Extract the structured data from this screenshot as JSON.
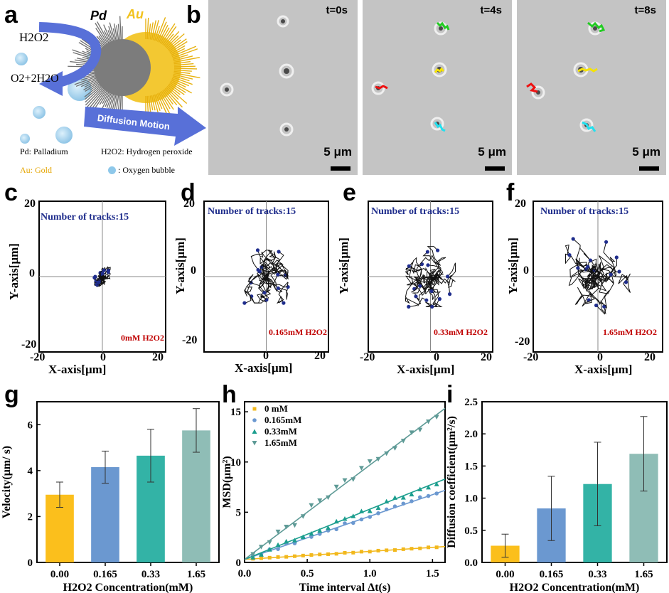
{
  "panel_labels": {
    "a": "a",
    "b": "b",
    "c": "c",
    "d": "d",
    "e": "e",
    "f": "f",
    "g": "g",
    "h": "h",
    "i": "i"
  },
  "schematic": {
    "pd": "Pd",
    "au": "Au",
    "h2o2_top": "H2O2",
    "products": "O2+2H2O",
    "diffusion": "Diffusion Motion",
    "legend_pd": "Pd: Palladium",
    "legend_h2o2": "H2O2: Hydrogen peroxide",
    "legend_au": "Au: Gold",
    "legend_bubble": ": Oxygen bubble",
    "colors": {
      "au": "#f2c21c",
      "arrow": "#5870d8",
      "bubble": "#8ec8ea"
    }
  },
  "micrographs": [
    {
      "time": "t=0s",
      "scale": "5 μm"
    },
    {
      "time": "t=4s",
      "scale": "5 μm"
    },
    {
      "time": "t=8s",
      "scale": "5 μm"
    }
  ],
  "tracks": {
    "number_label": "Number of tracks:15",
    "x_label": "X-axis[μm]",
    "y_label": "Y-axis[μm]",
    "ticks": {
      "neg": "-20",
      "zero": "0",
      "pos": "20"
    },
    "conditions": [
      {
        "name": "0mM H2O2",
        "spread": 2.5
      },
      {
        "name": "0.165mM H2O2",
        "spread": 7
      },
      {
        "name": "0.33mM H2O2",
        "spread": 8
      },
      {
        "name": "1.65mM H2O2",
        "spread": 10
      }
    ],
    "colors": {
      "number": "#1f2d8c",
      "condition": "#c00000"
    }
  },
  "chart_data": [
    {
      "type": "bar",
      "title": "",
      "xlabel": "H2O2 Concentration(mM)",
      "ylabel": "Velocity(μm/ s)",
      "categories": [
        "0.00",
        "0.165",
        "0.33",
        "1.65"
      ],
      "values": [
        2.95,
        4.15,
        4.65,
        5.75
      ],
      "errors": [
        0.55,
        0.7,
        1.15,
        0.95
      ],
      "colors": [
        "#fbbf1c",
        "#6b98d0",
        "#33b3a6",
        "#8fbdb6"
      ],
      "ylim": [
        0,
        7
      ],
      "yticks": [
        "0",
        "2",
        "4",
        "6"
      ]
    },
    {
      "type": "line",
      "title": "",
      "xlabel": "Time interval Δt(s)",
      "ylabel": "MSD(μm²)",
      "xlim": [
        0,
        1.6
      ],
      "ylim": [
        0,
        16
      ],
      "xticks": [
        "0.0",
        "0.5",
        "1.0",
        "1.5"
      ],
      "yticks": [
        "0",
        "5",
        "10",
        "15"
      ],
      "series": [
        {
          "name": "0 mM",
          "slope": 0.8,
          "color": "#f2b81c",
          "marker": "square"
        },
        {
          "name": "0.165mM",
          "slope": 4.3,
          "color": "#6b98d0",
          "marker": "circle"
        },
        {
          "name": "0.33mM",
          "slope": 5.0,
          "color": "#1c9e8e",
          "marker": "triangle"
        },
        {
          "name": "1.65mM",
          "slope": 9.4,
          "color": "#5e9a96",
          "marker": "tri-down"
        }
      ],
      "x_points": [
        0.067,
        0.133,
        0.2,
        0.267,
        0.333,
        0.4,
        0.467,
        0.533,
        0.6,
        0.667,
        0.733,
        0.8,
        0.867,
        0.933,
        1.0,
        1.067,
        1.133,
        1.2,
        1.267,
        1.333,
        1.4,
        1.467,
        1.533
      ]
    },
    {
      "type": "bar",
      "title": "",
      "xlabel": "H2O2 Concentration(mM)",
      "ylabel": "Diffusion coefficient(μm²/s)",
      "categories": [
        "0.00",
        "0.165",
        "0.33",
        "1.65"
      ],
      "values": [
        0.26,
        0.84,
        1.22,
        1.69
      ],
      "errors": [
        0.18,
        0.5,
        0.65,
        0.58
      ],
      "colors": [
        "#fbbf1c",
        "#6b98d0",
        "#33b3a6",
        "#8fbdb6"
      ],
      "ylim": [
        0,
        2.5
      ],
      "yticks": [
        "0.0",
        "0.5",
        "1.0",
        "1.5",
        "2.0",
        "2.5"
      ]
    }
  ]
}
